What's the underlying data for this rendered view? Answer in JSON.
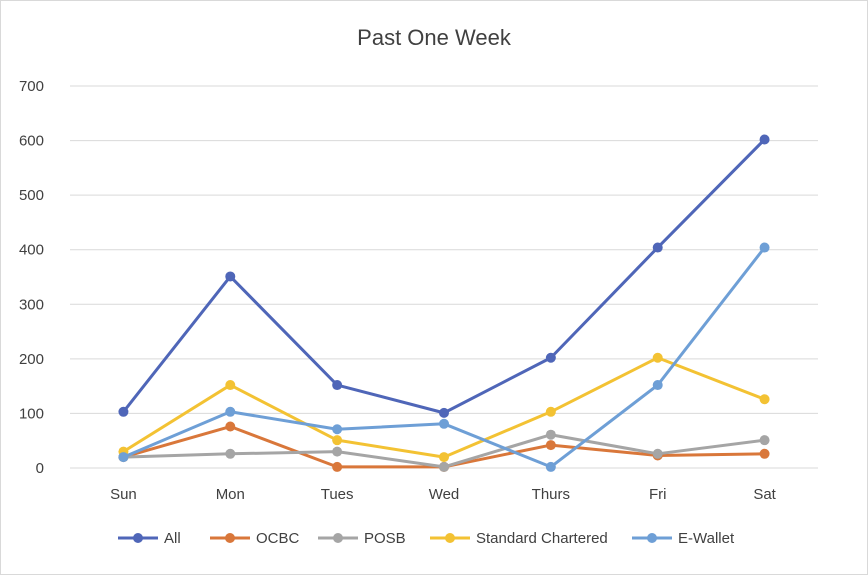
{
  "chart_data": {
    "type": "line",
    "title": "Past One Week",
    "xlabel": "",
    "ylabel": "",
    "categories": [
      "Sun",
      "Mon",
      "Tues",
      "Wed",
      "Thurs",
      "Fri",
      "Sat"
    ],
    "ylim": [
      0,
      700
    ],
    "yticks": [
      "0",
      "100",
      "200",
      "300",
      "400",
      "500",
      "600",
      "700"
    ],
    "grid": true,
    "legend_position": "bottom",
    "series": [
      {
        "name": "All",
        "color": "#4472C4",
        "line_color": "#4f66b8",
        "values": [
          103,
          351,
          152,
          101,
          202,
          404,
          602
        ]
      },
      {
        "name": "OCBC",
        "color": "#ED7D31",
        "line_color": "#d9773a",
        "values": [
          20,
          76,
          2,
          2,
          42,
          23,
          26
        ]
      },
      {
        "name": "POSB",
        "color": "#A5A5A5",
        "line_color": "#a5a5a5",
        "values": [
          20,
          26,
          30,
          2,
          61,
          26,
          51
        ]
      },
      {
        "name": "Standard Chartered",
        "color": "#FFC000",
        "line_color": "#f3c233",
        "values": [
          30,
          152,
          51,
          20,
          103,
          202,
          126
        ]
      },
      {
        "name": "E-Wallet",
        "color": "#5B9BD5",
        "line_color": "#6e9fd6",
        "values": [
          20,
          103,
          71,
          81,
          2,
          152,
          404
        ]
      }
    ]
  }
}
